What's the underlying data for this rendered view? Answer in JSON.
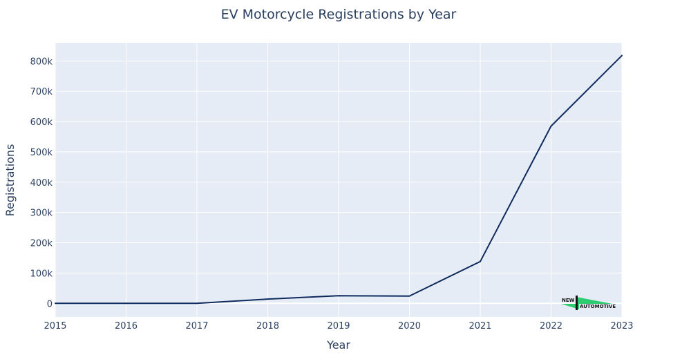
{
  "chart_data": {
    "type": "line",
    "title": "EV Motorcycle Registrations by Year",
    "xlabel": "Year",
    "ylabel": "Registrations",
    "x": [
      2015,
      2016,
      2017,
      2018,
      2019,
      2020,
      2021,
      2022,
      2023
    ],
    "x_tick_labels": [
      "2015",
      "2016",
      "2017",
      "2018",
      "2019",
      "2020",
      "2021",
      "2022",
      "2023"
    ],
    "series": [
      {
        "name": "Registrations",
        "values": [
          0,
          0,
          0,
          14000,
          25000,
          24000,
          138000,
          585000,
          818000
        ]
      }
    ],
    "xlim": [
      2015,
      2023
    ],
    "ylim": [
      -45000,
      860000
    ],
    "y_ticks": [
      0,
      100000,
      200000,
      300000,
      400000,
      500000,
      600000,
      700000,
      800000
    ],
    "y_tick_labels": [
      "0",
      "100k",
      "200k",
      "300k",
      "400k",
      "500k",
      "600k",
      "700k",
      "800k"
    ],
    "grid": true,
    "colors": {
      "line": "#0f2a5c",
      "plot_bg": "#e5ecf6",
      "grid": "#ffffff",
      "text": "#2a3f5f"
    }
  },
  "logo": {
    "line1": "NEW",
    "line2": "AUTOMOTIVE",
    "accent_color": "#2ecc71",
    "dark_color": "#111111"
  }
}
